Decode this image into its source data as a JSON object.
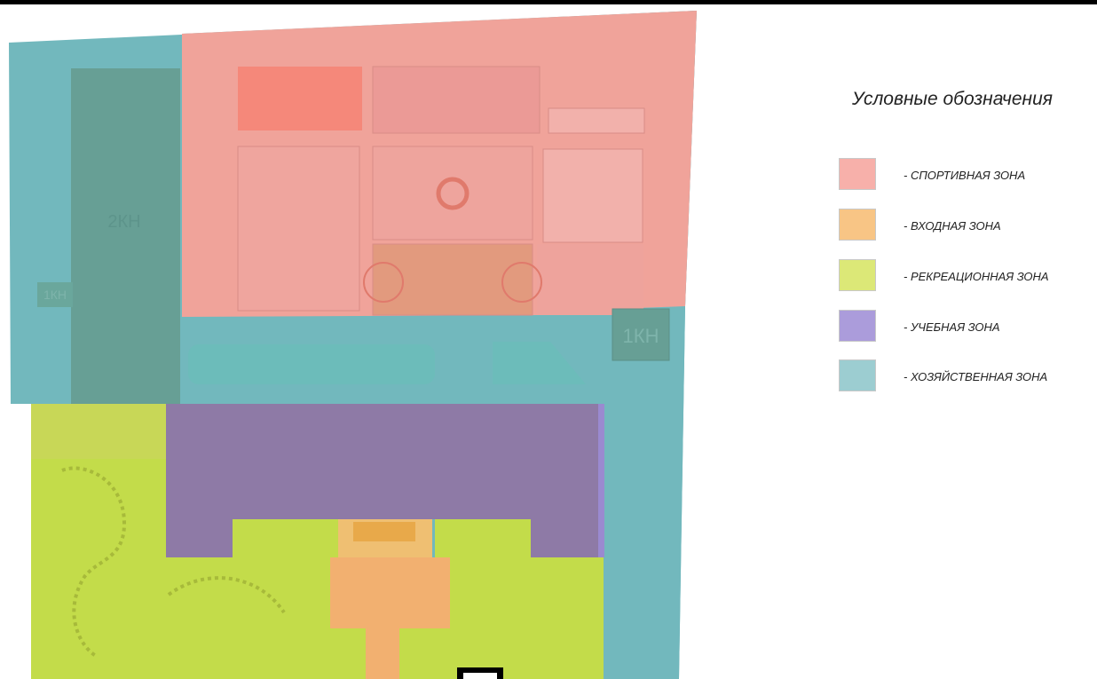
{
  "legend": {
    "title": "Условные обозначения",
    "items": [
      {
        "label": "- СПОРТИВНАЯ ЗОНА",
        "color": "#f7b0aa"
      },
      {
        "label": "- ВХОДНАЯ ЗОНА",
        "color": "#f8c585"
      },
      {
        "label": "- РЕКРЕАЦИОННАЯ ЗОНА",
        "color": "#dce877"
      },
      {
        "label": "- УЧЕБНАЯ ЗОНА",
        "color": "#ab9cdb"
      },
      {
        "label": "- ХОЗЯЙСТВЕННАЯ ЗОНА",
        "color": "#9ccdd1"
      }
    ]
  },
  "map": {
    "labels": {
      "building_2kn": "2КН",
      "building_1kn_left": "1КН",
      "building_1kn_right": "1КН"
    },
    "colors": {
      "sport": "#f0a39a",
      "entrance": "#f2b070",
      "recreation": "#c3dc4a",
      "education": "#8e7aa6",
      "utility": "#72b8bd"
    }
  }
}
